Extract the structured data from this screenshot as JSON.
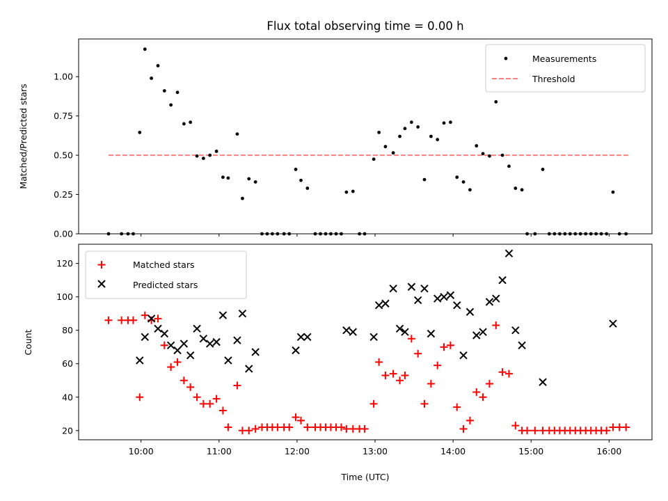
{
  "colors": {
    "measure": "#000000",
    "threshold": "#ff7f7f",
    "matched": "#ff0000",
    "predicted": "#000000"
  },
  "chart_data": [
    {
      "type": "scatter",
      "title": "Flux total observing time = 0.00 h",
      "xlabel": "",
      "ylabel": "Matched/Predicted stars",
      "xlim": [
        9.2,
        16.55
      ],
      "ylim": [
        0,
        1.24
      ],
      "yticks": [
        0.0,
        0.25,
        0.5,
        0.75,
        1.0
      ],
      "ytick_labels": [
        "0.00",
        "0.25",
        "0.50",
        "0.75",
        "1.00"
      ],
      "xticks": [
        10,
        11,
        12,
        13,
        14,
        15,
        16
      ],
      "legend": {
        "placement": "top-right",
        "entries": [
          "Measurements",
          "Threshold"
        ]
      },
      "threshold": {
        "name": "Threshold",
        "y": 0.5,
        "x_start": 9.583,
        "x_end": 16.25
      },
      "series": [
        {
          "name": "Measurements",
          "marker": "dot",
          "x": [
            9.583,
            9.75,
            9.833,
            9.9,
            9.983,
            10.05,
            10.133,
            10.217,
            10.3,
            10.383,
            10.467,
            10.55,
            10.633,
            10.717,
            10.8,
            10.883,
            10.967,
            11.05,
            11.117,
            11.233,
            11.3,
            11.383,
            11.467,
            11.55,
            11.617,
            11.683,
            11.75,
            11.833,
            11.9,
            11.983,
            12.05,
            12.133,
            12.233,
            12.3,
            12.367,
            12.433,
            12.5,
            12.567,
            12.633,
            12.717,
            12.8,
            12.867,
            12.983,
            13.05,
            13.133,
            13.233,
            13.317,
            13.383,
            13.467,
            13.55,
            13.633,
            13.717,
            13.8,
            13.883,
            13.967,
            14.05,
            14.133,
            14.217,
            14.3,
            14.383,
            14.467,
            14.55,
            14.633,
            14.717,
            14.8,
            14.883,
            14.95,
            15.05,
            15.15,
            15.233,
            15.3,
            15.367,
            15.433,
            15.5,
            15.567,
            15.633,
            15.7,
            15.767,
            15.833,
            15.9,
            15.967,
            16.05,
            16.133,
            16.217
          ],
          "y": [
            0.0,
            0.0,
            0.0,
            0.0,
            0.645,
            1.175,
            0.99,
            1.07,
            0.91,
            0.82,
            0.9,
            0.7,
            0.71,
            0.495,
            0.48,
            0.5,
            0.525,
            0.36,
            0.355,
            0.635,
            0.225,
            0.35,
            0.33,
            0.0,
            0.0,
            0.0,
            0.0,
            0.0,
            0.0,
            0.41,
            0.34,
            0.29,
            0.0,
            0.0,
            0.0,
            0.0,
            0.0,
            0.0,
            0.265,
            0.27,
            0.0,
            0.0,
            0.475,
            0.645,
            0.555,
            0.515,
            0.62,
            0.67,
            0.71,
            0.68,
            0.345,
            0.62,
            0.6,
            0.705,
            0.71,
            0.36,
            0.33,
            0.28,
            0.56,
            0.51,
            0.495,
            0.84,
            0.5,
            0.43,
            0.29,
            0.28,
            0.0,
            0.0,
            0.41,
            0.0,
            0.0,
            0.0,
            0.0,
            0.0,
            0.0,
            0.0,
            0.0,
            0.0,
            0.0,
            0.0,
            0.0,
            0.265,
            0.0,
            0.0
          ]
        }
      ]
    },
    {
      "type": "scatter",
      "title": "",
      "xlabel": "Time (UTC)",
      "ylabel": "Count",
      "xlim": [
        9.2,
        16.55
      ],
      "ylim": [
        14.5,
        131.5
      ],
      "yticks": [
        20,
        40,
        60,
        80,
        100,
        120
      ],
      "xticks": [
        10,
        11,
        12,
        13,
        14,
        15,
        16
      ],
      "xtick_labels": [
        "10:00",
        "11:00",
        "12:00",
        "13:00",
        "14:00",
        "15:00",
        "16:00"
      ],
      "legend": {
        "placement": "top-left",
        "entries": [
          "Matched stars",
          "Predicted stars"
        ]
      },
      "series": [
        {
          "name": "Matched stars",
          "marker": "plus",
          "x": [
            9.583,
            9.75,
            9.833,
            9.9,
            9.983,
            10.05,
            10.133,
            10.217,
            10.3,
            10.383,
            10.467,
            10.55,
            10.633,
            10.717,
            10.8,
            10.883,
            10.967,
            11.05,
            11.117,
            11.233,
            11.3,
            11.383,
            11.467,
            11.55,
            11.617,
            11.683,
            11.75,
            11.833,
            11.9,
            11.983,
            12.05,
            12.133,
            12.233,
            12.3,
            12.367,
            12.433,
            12.5,
            12.567,
            12.633,
            12.717,
            12.8,
            12.867,
            12.983,
            13.05,
            13.133,
            13.233,
            13.317,
            13.383,
            13.467,
            13.55,
            13.633,
            13.717,
            13.8,
            13.883,
            13.967,
            14.05,
            14.133,
            14.217,
            14.3,
            14.383,
            14.467,
            14.55,
            14.633,
            14.717,
            14.8,
            14.883,
            14.95,
            15.05,
            15.15,
            15.233,
            15.3,
            15.367,
            15.433,
            15.5,
            15.567,
            15.633,
            15.7,
            15.767,
            15.833,
            15.9,
            15.967,
            16.05,
            16.133,
            16.217
          ],
          "y": [
            86,
            86,
            86,
            86,
            40,
            89,
            86,
            87,
            71,
            58,
            61,
            50,
            46,
            40,
            36,
            36,
            39,
            32,
            22,
            47,
            20,
            20,
            21,
            22,
            22,
            22,
            22,
            22,
            22,
            28,
            26,
            22,
            22,
            22,
            22,
            22,
            22,
            22,
            21,
            21,
            21,
            21,
            36,
            61,
            53,
            54,
            50,
            53,
            75,
            66,
            36,
            48,
            59,
            70,
            71,
            34,
            21,
            26,
            43,
            40,
            48,
            83,
            55,
            54,
            23,
            20,
            20,
            20,
            20,
            20,
            20,
            20,
            20,
            20,
            20,
            20,
            20,
            20,
            20,
            20,
            20,
            22,
            22,
            22
          ]
        },
        {
          "name": "Predicted stars",
          "marker": "x",
          "x": [
            9.983,
            10.05,
            10.133,
            10.217,
            10.3,
            10.383,
            10.467,
            10.55,
            10.633,
            10.717,
            10.8,
            10.883,
            10.967,
            11.05,
            11.117,
            11.233,
            11.3,
            11.383,
            11.467,
            11.983,
            12.05,
            12.133,
            12.633,
            12.717,
            12.983,
            13.05,
            13.133,
            13.233,
            13.317,
            13.383,
            13.467,
            13.55,
            13.633,
            13.717,
            13.8,
            13.883,
            13.967,
            14.05,
            14.133,
            14.217,
            14.3,
            14.383,
            14.467,
            14.55,
            14.633,
            14.717,
            14.8,
            14.883,
            15.15,
            16.05
          ],
          "y": [
            62,
            76,
            87,
            81,
            78,
            71,
            68,
            72,
            65,
            81,
            75,
            72,
            73,
            89,
            62,
            74,
            90,
            57,
            67,
            68,
            76,
            76,
            80,
            79,
            76,
            95,
            96,
            105,
            81,
            79,
            106,
            98,
            105,
            78,
            99,
            100,
            101,
            95,
            65,
            91,
            77,
            79,
            97,
            99,
            110,
            126,
            80,
            71,
            49,
            84
          ]
        }
      ]
    }
  ]
}
